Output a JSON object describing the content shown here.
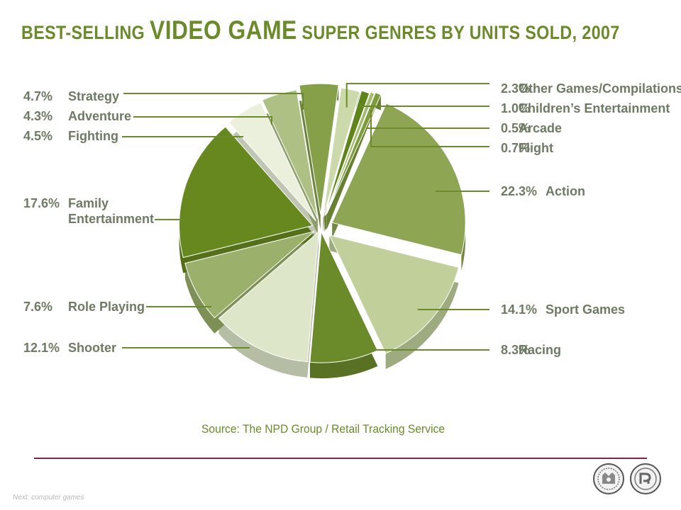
{
  "title": {
    "pre": "BEST-SELLING ",
    "emphasis": "VIDEO GAME",
    "post": " SUPER GENRES BY UNITS SOLD, 2007"
  },
  "source": "Source: The NPD Group / Retail Tracking Service",
  "footer": "Next: computer games",
  "colors": {
    "title": "#6b8a2a",
    "label": "#6f7a64",
    "line": "#6b8a2a",
    "rule": "#7a2a44"
  },
  "chart_data": {
    "type": "pie",
    "title": "BEST-SELLING VIDEO GAME SUPER GENRES BY UNITS SOLD, 2007",
    "unit": "%",
    "slices": [
      {
        "label": "Action",
        "value": 22.3,
        "pct": "22.3%",
        "color": "#8ea653"
      },
      {
        "label": "Sport Games",
        "value": 14.1,
        "pct": "14.1%",
        "color": "#c1cf9b"
      },
      {
        "label": "Racing",
        "value": 8.3,
        "pct": "8.3%",
        "color": "#6b8a2a"
      },
      {
        "label": "Shooter",
        "value": 12.1,
        "pct": "12.1%",
        "color": "#dde6c8"
      },
      {
        "label": "Role Playing",
        "value": 7.6,
        "pct": "7.6%",
        "color": "#9bb06a"
      },
      {
        "label": "Family Entertainment",
        "lines": [
          "Family",
          "Entertainment"
        ],
        "value": 17.6,
        "pct": "17.6%",
        "color": "#66881f"
      },
      {
        "label": "Fighting",
        "value": 4.5,
        "pct": "4.5%",
        "color": "#eaf0dc"
      },
      {
        "label": "Adventure",
        "value": 4.3,
        "pct": "4.3%",
        "color": "#aec084"
      },
      {
        "label": "Strategy",
        "value": 4.7,
        "pct": "4.7%",
        "color": "#86a04a"
      },
      {
        "label": "Other Games/Compilations",
        "value": 2.3,
        "pct": "2.3%",
        "color": "#ccd9aa"
      },
      {
        "label": "Children’s Entertainment",
        "value": 1.0,
        "pct": "1.0%",
        "color": "#5f851a"
      },
      {
        "label": "Arcade",
        "value": 0.5,
        "pct": "0.5%",
        "color": "#a3bb6c"
      },
      {
        "label": "Flight",
        "value": 0.7,
        "pct": "0.7%",
        "color": "#7e9c3c"
      }
    ]
  }
}
